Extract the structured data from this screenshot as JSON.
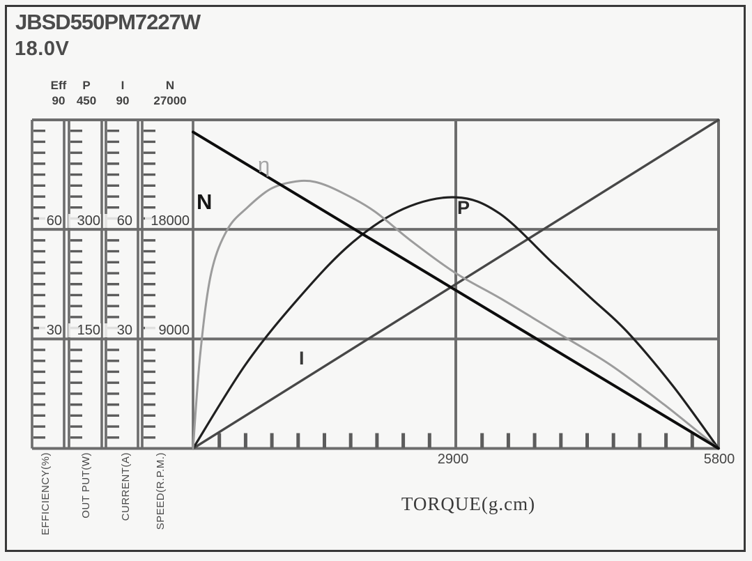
{
  "title": "JBSD550PM7227W",
  "voltage": "18.0V",
  "axes": {
    "columns": [
      {
        "name": "Eff",
        "top_value": "90",
        "mid_value": "60",
        "low_value": "30",
        "unit_label": "EFFICIENCY(%)"
      },
      {
        "name": "P",
        "top_value": "450",
        "mid_value": "300",
        "low_value": "150",
        "unit_label": "OUT PUT(W)"
      },
      {
        "name": "I",
        "top_value": "90",
        "mid_value": "60",
        "low_value": "30",
        "unit_label": "CURRENT(A)"
      },
      {
        "name": "N",
        "top_value": "27000",
        "mid_value": "18000",
        "low_value": "9000",
        "unit_label": "SPEED(R.P.M.)"
      }
    ],
    "x": {
      "title": "TORQUE(g.cm)",
      "mid_label": "2900",
      "max_label": "5800"
    }
  },
  "colors": {
    "grid": "#6d6d6d",
    "tick": "#5c5c5c",
    "frame_border": "#383838"
  },
  "chart_data": {
    "type": "line",
    "title": "JBSD550PM7227W 18.0V motor performance curves",
    "xlabel": "TORQUE(g.cm)",
    "x_range": [
      0,
      5800
    ],
    "x_tick_step": 290,
    "x_labeled_ticks": [
      2900,
      5800
    ],
    "x_gridlines": [
      2900
    ],
    "grid": "on",
    "legend_position": "inline-curve-labels",
    "horizontal_gridline_values": [
      {
        "Eff": 60,
        "P": 300,
        "I": 60,
        "N": 18000
      },
      {
        "Eff": 30,
        "P": 150,
        "I": 30,
        "N": 9000
      }
    ],
    "series": [
      {
        "name": "current",
        "label": "I",
        "axis": "CURRENT(A)",
        "axis_range": [
          0,
          90
        ],
        "color": "#474747",
        "width": 3.4,
        "points": [
          [
            0,
            0
          ],
          [
            5800,
            90
          ]
        ]
      },
      {
        "name": "output-power",
        "label": "P",
        "axis": "OUT PUT(W)",
        "axis_range": [
          0,
          450
        ],
        "color": "#202020",
        "width": 3.2,
        "points": [
          [
            0,
            0
          ],
          [
            580,
            115
          ],
          [
            1160,
            205
          ],
          [
            1740,
            280
          ],
          [
            2320,
            328
          ],
          [
            2900,
            344
          ],
          [
            3380,
            322
          ],
          [
            3970,
            254
          ],
          [
            4400,
            205
          ],
          [
            4790,
            160
          ],
          [
            5300,
            85
          ],
          [
            5800,
            0
          ]
        ]
      },
      {
        "name": "efficiency",
        "label": "η",
        "axis": "EFFICIENCY(%)",
        "axis_range": [
          0,
          90
        ],
        "color": "#9c9c9c",
        "width": 3,
        "points": [
          [
            0,
            0
          ],
          [
            80,
            26
          ],
          [
            200,
            48
          ],
          [
            380,
            60
          ],
          [
            600,
            66
          ],
          [
            850,
            71
          ],
          [
            1100,
            73
          ],
          [
            1350,
            73
          ],
          [
            1650,
            70
          ],
          [
            2000,
            65
          ],
          [
            2400,
            57
          ],
          [
            2900,
            48
          ],
          [
            3400,
            41
          ],
          [
            4000,
            32
          ],
          [
            4600,
            23
          ],
          [
            5200,
            12
          ],
          [
            5800,
            0
          ]
        ]
      },
      {
        "name": "speed",
        "label": "N",
        "axis": "SPEED(R.P.M.)",
        "axis_range": [
          0,
          27000
        ],
        "color": "#0d0d0d",
        "width": 4,
        "points": [
          [
            0,
            26000
          ],
          [
            5800,
            0
          ]
        ]
      }
    ]
  }
}
